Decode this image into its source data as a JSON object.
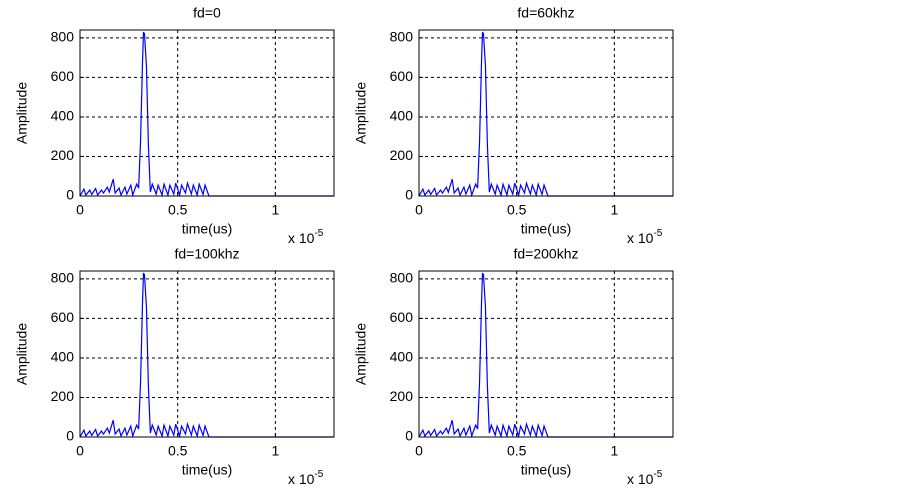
{
  "chart_data": [
    {
      "type": "line",
      "title": "fd=0",
      "x_label": "time(us)",
      "y_label": "Amplitude",
      "x_scale_label": "x 10",
      "x_scale_exponent": "-5",
      "x": [
        0,
        0.02,
        0.03,
        0.05,
        0.06,
        0.08,
        0.09,
        0.11,
        0.12,
        0.14,
        0.15,
        0.17,
        0.18,
        0.2,
        0.21,
        0.23,
        0.24,
        0.26,
        0.27,
        0.29,
        0.3,
        0.31,
        0.32,
        0.325,
        0.33,
        0.34,
        0.35,
        0.36,
        0.37,
        0.39,
        0.4,
        0.42,
        0.43,
        0.45,
        0.46,
        0.48,
        0.49,
        0.51,
        0.52,
        0.54,
        0.55,
        0.57,
        0.58,
        0.6,
        0.61,
        0.63,
        0.64,
        0.66,
        0.67,
        1.3
      ],
      "values": [
        0,
        35,
        5,
        30,
        8,
        38,
        5,
        30,
        15,
        45,
        20,
        85,
        15,
        40,
        5,
        45,
        10,
        55,
        5,
        60,
        40,
        280,
        680,
        830,
        820,
        660,
        260,
        20,
        60,
        10,
        55,
        5,
        60,
        5,
        55,
        10,
        65,
        5,
        55,
        15,
        65,
        10,
        55,
        5,
        60,
        8,
        55,
        0,
        0,
        0
      ],
      "color": "#0000ff",
      "xlim": [
        0,
        1.3
      ],
      "ylim": [
        0,
        840
      ],
      "xticks": [
        0,
        0.5,
        1
      ],
      "yticks": [
        0,
        200,
        400,
        600,
        800
      ],
      "grid": true
    },
    {
      "type": "line",
      "title": "fd=60khz",
      "x_label": "time(us)",
      "y_label": "Amplitude",
      "x_scale_label": "x 10",
      "x_scale_exponent": "-5",
      "x": [
        0,
        0.02,
        0.03,
        0.05,
        0.06,
        0.08,
        0.09,
        0.11,
        0.12,
        0.14,
        0.15,
        0.17,
        0.18,
        0.2,
        0.21,
        0.23,
        0.24,
        0.26,
        0.27,
        0.29,
        0.3,
        0.31,
        0.32,
        0.325,
        0.33,
        0.34,
        0.35,
        0.36,
        0.37,
        0.39,
        0.4,
        0.42,
        0.43,
        0.45,
        0.46,
        0.48,
        0.49,
        0.51,
        0.52,
        0.54,
        0.55,
        0.57,
        0.58,
        0.6,
        0.61,
        0.63,
        0.64,
        0.66,
        0.67,
        1.3
      ],
      "values": [
        0,
        35,
        5,
        30,
        8,
        38,
        5,
        30,
        15,
        45,
        20,
        85,
        15,
        40,
        5,
        45,
        10,
        55,
        5,
        60,
        40,
        280,
        680,
        830,
        820,
        660,
        260,
        20,
        60,
        10,
        55,
        5,
        60,
        5,
        55,
        10,
        65,
        5,
        55,
        15,
        65,
        10,
        55,
        5,
        60,
        8,
        55,
        0,
        0,
        0
      ],
      "color": "#0000ff",
      "xlim": [
        0,
        1.3
      ],
      "ylim": [
        0,
        840
      ],
      "xticks": [
        0,
        0.5,
        1
      ],
      "yticks": [
        0,
        200,
        400,
        600,
        800
      ],
      "grid": true
    },
    {
      "type": "line",
      "title": "fd=100khz",
      "x_label": "time(us)",
      "y_label": "Amplitude",
      "x_scale_label": "x 10",
      "x_scale_exponent": "-5",
      "x": [
        0,
        0.02,
        0.03,
        0.05,
        0.06,
        0.08,
        0.09,
        0.11,
        0.12,
        0.14,
        0.15,
        0.17,
        0.18,
        0.2,
        0.21,
        0.23,
        0.24,
        0.26,
        0.27,
        0.29,
        0.3,
        0.31,
        0.32,
        0.325,
        0.33,
        0.34,
        0.35,
        0.36,
        0.37,
        0.39,
        0.4,
        0.42,
        0.43,
        0.45,
        0.46,
        0.48,
        0.49,
        0.51,
        0.52,
        0.54,
        0.55,
        0.57,
        0.58,
        0.6,
        0.61,
        0.63,
        0.64,
        0.66,
        0.67,
        1.3
      ],
      "values": [
        0,
        35,
        5,
        30,
        8,
        38,
        5,
        30,
        15,
        45,
        20,
        85,
        15,
        40,
        5,
        45,
        10,
        55,
        5,
        60,
        40,
        280,
        680,
        830,
        820,
        660,
        260,
        20,
        60,
        10,
        55,
        5,
        60,
        5,
        55,
        10,
        65,
        5,
        55,
        15,
        65,
        10,
        55,
        5,
        60,
        8,
        55,
        0,
        0,
        0
      ],
      "color": "#0000ff",
      "xlim": [
        0,
        1.3
      ],
      "ylim": [
        0,
        840
      ],
      "xticks": [
        0,
        0.5,
        1
      ],
      "yticks": [
        0,
        200,
        400,
        600,
        800
      ],
      "grid": true
    },
    {
      "type": "line",
      "title": "fd=200khz",
      "x_label": "time(us)",
      "y_label": "Amplitude",
      "x_scale_label": "x 10",
      "x_scale_exponent": "-5",
      "x": [
        0,
        0.02,
        0.03,
        0.05,
        0.06,
        0.08,
        0.09,
        0.11,
        0.12,
        0.14,
        0.15,
        0.17,
        0.18,
        0.2,
        0.21,
        0.23,
        0.24,
        0.26,
        0.27,
        0.29,
        0.3,
        0.31,
        0.32,
        0.325,
        0.33,
        0.34,
        0.35,
        0.36,
        0.37,
        0.39,
        0.4,
        0.42,
        0.43,
        0.45,
        0.46,
        0.48,
        0.49,
        0.51,
        0.52,
        0.54,
        0.55,
        0.57,
        0.58,
        0.6,
        0.61,
        0.63,
        0.64,
        0.66,
        0.67,
        1.3
      ],
      "values": [
        0,
        35,
        5,
        30,
        8,
        38,
        5,
        30,
        15,
        45,
        20,
        85,
        15,
        40,
        5,
        45,
        10,
        55,
        5,
        60,
        40,
        280,
        680,
        830,
        820,
        660,
        260,
        20,
        60,
        10,
        55,
        5,
        60,
        5,
        55,
        10,
        65,
        5,
        55,
        15,
        65,
        10,
        55,
        5,
        60,
        8,
        55,
        0,
        0,
        0
      ],
      "color": "#0000ff",
      "xlim": [
        0,
        1.3
      ],
      "ylim": [
        0,
        840
      ],
      "xticks": [
        0,
        0.5,
        1
      ],
      "yticks": [
        0,
        200,
        400,
        600,
        800
      ],
      "grid": true
    }
  ]
}
